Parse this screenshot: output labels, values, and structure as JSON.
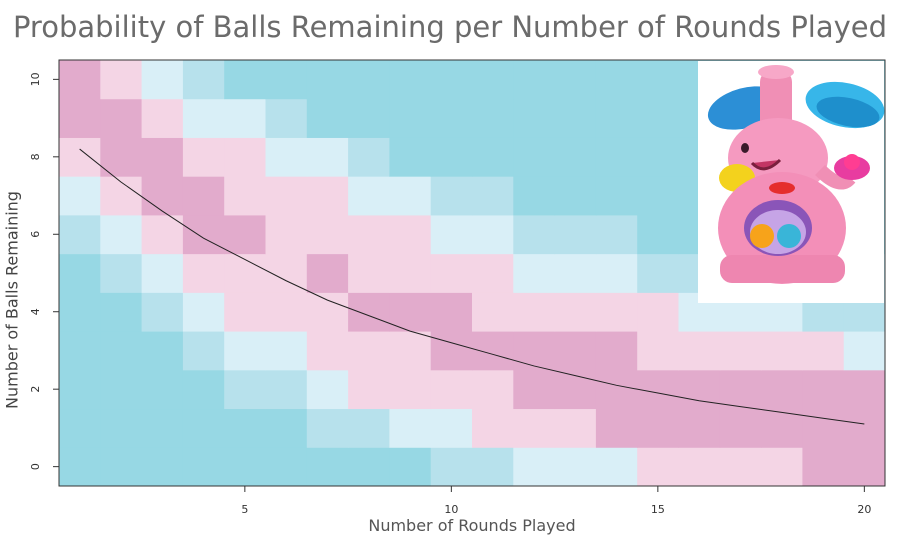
{
  "chart_data": {
    "type": "heatmap",
    "title": "Probability of Balls Remaining per Number of Rounds Played",
    "xlabel": "Number of Rounds Played",
    "ylabel": "Number of Balls Remaining",
    "x": [
      1,
      2,
      3,
      4,
      5,
      6,
      7,
      8,
      9,
      10,
      11,
      12,
      13,
      14,
      15,
      16,
      17,
      18,
      19,
      20
    ],
    "y": [
      0,
      1,
      2,
      3,
      4,
      5,
      6,
      7,
      8,
      9,
      10
    ],
    "xlim": [
      0.5,
      20.5
    ],
    "ylim": [
      -0.5,
      10.5
    ],
    "x_ticks": [
      "5",
      "10",
      "15",
      "20"
    ],
    "y_ticks": [
      "0",
      "2",
      "4",
      "6",
      "8",
      "10"
    ],
    "grid": false,
    "colors": {
      "scale": [
        "#97d8e4",
        "#b7e1ec",
        "#d9eff7",
        "#f4d5e5",
        "#e2abcc"
      ],
      "curve": "#222222",
      "title": "#6b6b6b"
    },
    "legend": "none",
    "matrix_note": "rows indexed by balls remaining 0..10, columns by rounds 1..20; value = color level 0 (cyan) .. 4 (mauve)",
    "matrix": [
      [
        0,
        0,
        0,
        0,
        0,
        0,
        0,
        0,
        0,
        1,
        1,
        2,
        2,
        2,
        3,
        3,
        3,
        3,
        4,
        4
      ],
      [
        0,
        0,
        0,
        0,
        0,
        0,
        1,
        1,
        2,
        2,
        3,
        3,
        3,
        4,
        4,
        4,
        4,
        4,
        4,
        4
      ],
      [
        0,
        0,
        0,
        0,
        1,
        1,
        2,
        3,
        3,
        3,
        3,
        4,
        4,
        4,
        4,
        4,
        4,
        4,
        4,
        4
      ],
      [
        0,
        0,
        0,
        1,
        2,
        2,
        3,
        3,
        3,
        4,
        4,
        4,
        4,
        4,
        3,
        3,
        3,
        3,
        3,
        2
      ],
      [
        0,
        0,
        1,
        2,
        3,
        3,
        3,
        4,
        4,
        4,
        3,
        3,
        3,
        3,
        3,
        2,
        2,
        2,
        1,
        1
      ],
      [
        0,
        1,
        2,
        3,
        3,
        3,
        4,
        3,
        3,
        3,
        3,
        2,
        2,
        2,
        1,
        1,
        1,
        1,
        1,
        1
      ],
      [
        1,
        2,
        3,
        4,
        4,
        3,
        3,
        3,
        3,
        2,
        2,
        1,
        1,
        1,
        0,
        0,
        0,
        0,
        0,
        0
      ],
      [
        2,
        3,
        4,
        4,
        3,
        3,
        3,
        2,
        2,
        1,
        1,
        0,
        0,
        0,
        0,
        0,
        0,
        0,
        0,
        0
      ],
      [
        3,
        4,
        4,
        3,
        3,
        2,
        2,
        1,
        0,
        0,
        0,
        0,
        0,
        0,
        0,
        0,
        0,
        0,
        0,
        0
      ],
      [
        4,
        4,
        3,
        2,
        2,
        1,
        0,
        0,
        0,
        0,
        0,
        0,
        0,
        0,
        0,
        0,
        0,
        0,
        0,
        0
      ],
      [
        4,
        3,
        2,
        1,
        0,
        0,
        0,
        0,
        0,
        0,
        0,
        0,
        0,
        0,
        0,
        0,
        0,
        0,
        0,
        0
      ]
    ],
    "expected_curve": {
      "x": [
        1,
        2,
        3,
        4,
        5,
        6,
        7,
        8,
        9,
        10,
        11,
        12,
        13,
        14,
        15,
        16,
        17,
        18,
        19,
        20
      ],
      "y": [
        8.2,
        7.35,
        6.6,
        5.9,
        5.35,
        4.8,
        4.3,
        3.9,
        3.5,
        3.2,
        2.9,
        2.6,
        2.35,
        2.1,
        1.9,
        1.7,
        1.55,
        1.4,
        1.25,
        1.1
      ]
    }
  },
  "image": {
    "subject": "pink-elephant-toy-icon"
  }
}
